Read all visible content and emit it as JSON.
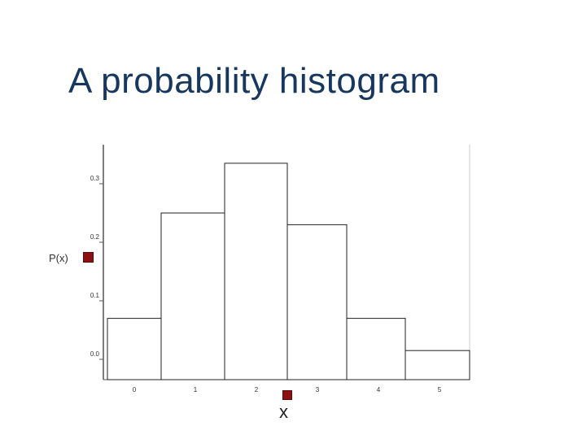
{
  "title": "A probability histogram",
  "chart_data": {
    "type": "bar",
    "title": "A probability histogram",
    "categories": [
      "0",
      "1",
      "2",
      "3",
      "4",
      "5"
    ],
    "values": [
      0.07,
      0.25,
      0.335,
      0.23,
      0.07,
      0.015
    ],
    "y_ticks": [
      "0.0",
      "0.1",
      "0.2",
      "0.3"
    ],
    "xlabel": "x",
    "ylabel": "P(x)",
    "ylim": [
      0,
      0.36
    ],
    "grid": false,
    "bar_fill": "#ffffff",
    "bar_stroke": "#222222",
    "marker_color": "#8b1111"
  }
}
